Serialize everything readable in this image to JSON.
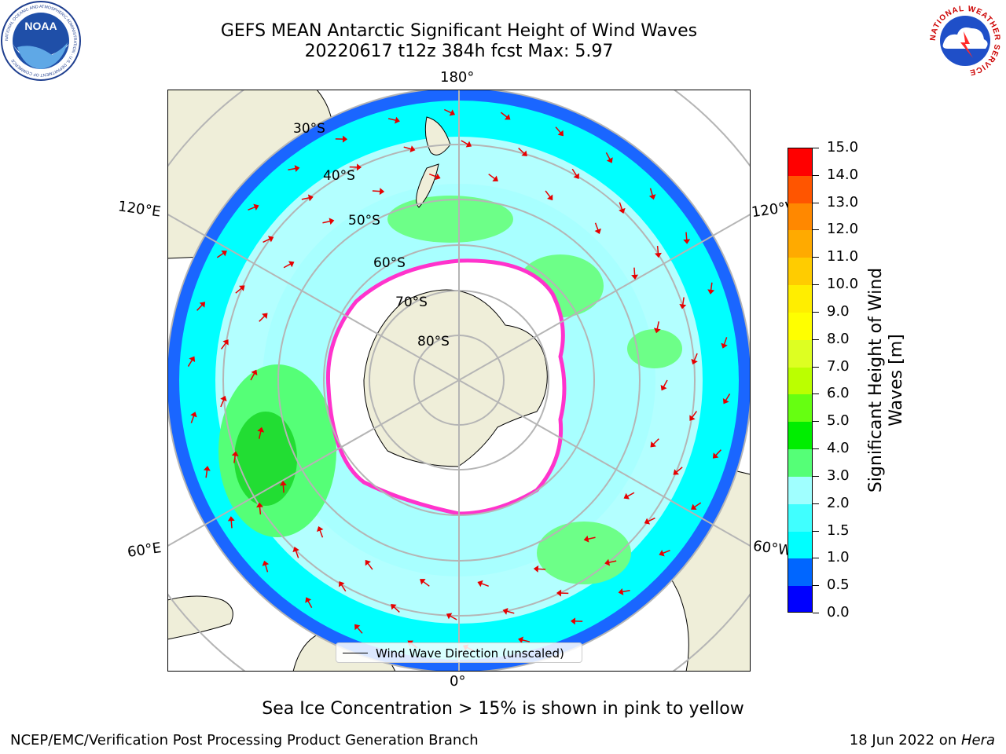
{
  "header": {
    "title_line1": "GEFS MEAN Antarctic Significant Height of Wind Waves",
    "title_line2": "20220617 t12z 384h fcst   Max: 5.97"
  },
  "logos": {
    "left": {
      "name": "noaa-logo",
      "text": "NOAA",
      "ring_text": "NATIONAL OCEANIC AND ATMOSPHERIC ADMINISTRATION · U.S. DEPARTMENT OF COMMERCE"
    },
    "right": {
      "name": "nws-logo",
      "ring_text": "NATIONAL WEATHER SERVICE"
    }
  },
  "map": {
    "projection": "south-polar-stereographic",
    "longitude_labels": {
      "top": "180°",
      "bottom": "0°",
      "left_upper": "120°E",
      "left_lower": "60°E",
      "right_upper": "120°W",
      "right_lower": "60°W"
    },
    "latitude_labels": [
      "30°S",
      "40°S",
      "50°S",
      "60°S",
      "70°S",
      "80°S"
    ],
    "legend": "Wind Wave Direction (unscaled)",
    "colors": {
      "land": "#efeed9",
      "ice": "#ffffff",
      "grid": "#b5b5b5",
      "arrow": "#e60000"
    }
  },
  "colorbar": {
    "title": "Significant Height of Wind Waves [m]",
    "ticks": [
      "0.0",
      "0.5",
      "1.0",
      "1.5",
      "2.0",
      "3.0",
      "4.0",
      "5.0",
      "6.0",
      "7.0",
      "8.0",
      "9.0",
      "10.0",
      "11.0",
      "12.0",
      "13.0",
      "14.0",
      "15.0"
    ],
    "colors": [
      "#0000ff",
      "#0066ff",
      "#00ffff",
      "#40ffff",
      "#a0ffff",
      "#55ff77",
      "#00ee00",
      "#66ff11",
      "#bbff00",
      "#ddff22",
      "#ffff00",
      "#ffee00",
      "#ffcc00",
      "#ffaa00",
      "#ff8800",
      "#ff5500",
      "#ff0000"
    ]
  },
  "subtitle": "Sea Ice Concentration > 15% is shown in pink to yellow",
  "footer": {
    "left": "NCEP/EMC/Verification Post Processing Product Generation Branch",
    "right_prefix": "18 Jun 2022 on ",
    "right_italic": "Hera"
  }
}
